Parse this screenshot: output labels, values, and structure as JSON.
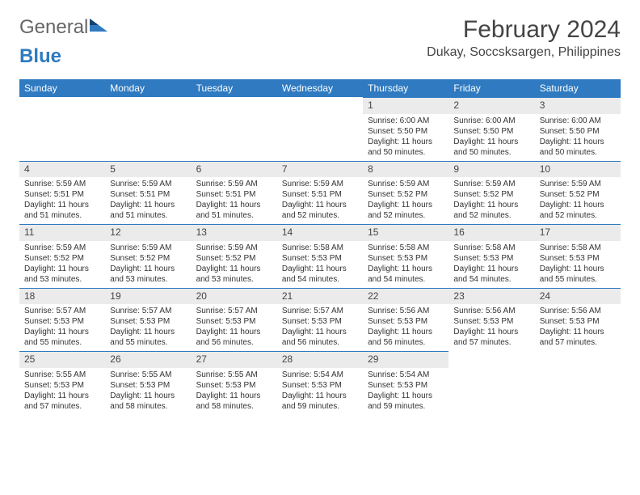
{
  "logo": {
    "text1": "General",
    "text2": "Blue"
  },
  "title": {
    "month": "February 2024",
    "location": "Dukay, Soccsksargen, Philippines"
  },
  "colors": {
    "header_bg": "#2f7ac0",
    "header_text": "#ffffff",
    "daynum_bg": "#ebebeb",
    "row_border": "#2f7ac0",
    "page_bg": "#ffffff",
    "body_text": "#333333"
  },
  "weekdays": [
    "Sunday",
    "Monday",
    "Tuesday",
    "Wednesday",
    "Thursday",
    "Friday",
    "Saturday"
  ],
  "first_weekday_index": 4,
  "days": [
    {
      "n": 1,
      "sunrise": "6:00 AM",
      "sunset": "5:50 PM",
      "daylight": "11 hours and 50 minutes."
    },
    {
      "n": 2,
      "sunrise": "6:00 AM",
      "sunset": "5:50 PM",
      "daylight": "11 hours and 50 minutes."
    },
    {
      "n": 3,
      "sunrise": "6:00 AM",
      "sunset": "5:50 PM",
      "daylight": "11 hours and 50 minutes."
    },
    {
      "n": 4,
      "sunrise": "5:59 AM",
      "sunset": "5:51 PM",
      "daylight": "11 hours and 51 minutes."
    },
    {
      "n": 5,
      "sunrise": "5:59 AM",
      "sunset": "5:51 PM",
      "daylight": "11 hours and 51 minutes."
    },
    {
      "n": 6,
      "sunrise": "5:59 AM",
      "sunset": "5:51 PM",
      "daylight": "11 hours and 51 minutes."
    },
    {
      "n": 7,
      "sunrise": "5:59 AM",
      "sunset": "5:51 PM",
      "daylight": "11 hours and 52 minutes."
    },
    {
      "n": 8,
      "sunrise": "5:59 AM",
      "sunset": "5:52 PM",
      "daylight": "11 hours and 52 minutes."
    },
    {
      "n": 9,
      "sunrise": "5:59 AM",
      "sunset": "5:52 PM",
      "daylight": "11 hours and 52 minutes."
    },
    {
      "n": 10,
      "sunrise": "5:59 AM",
      "sunset": "5:52 PM",
      "daylight": "11 hours and 52 minutes."
    },
    {
      "n": 11,
      "sunrise": "5:59 AM",
      "sunset": "5:52 PM",
      "daylight": "11 hours and 53 minutes."
    },
    {
      "n": 12,
      "sunrise": "5:59 AM",
      "sunset": "5:52 PM",
      "daylight": "11 hours and 53 minutes."
    },
    {
      "n": 13,
      "sunrise": "5:59 AM",
      "sunset": "5:52 PM",
      "daylight": "11 hours and 53 minutes."
    },
    {
      "n": 14,
      "sunrise": "5:58 AM",
      "sunset": "5:53 PM",
      "daylight": "11 hours and 54 minutes."
    },
    {
      "n": 15,
      "sunrise": "5:58 AM",
      "sunset": "5:53 PM",
      "daylight": "11 hours and 54 minutes."
    },
    {
      "n": 16,
      "sunrise": "5:58 AM",
      "sunset": "5:53 PM",
      "daylight": "11 hours and 54 minutes."
    },
    {
      "n": 17,
      "sunrise": "5:58 AM",
      "sunset": "5:53 PM",
      "daylight": "11 hours and 55 minutes."
    },
    {
      "n": 18,
      "sunrise": "5:57 AM",
      "sunset": "5:53 PM",
      "daylight": "11 hours and 55 minutes."
    },
    {
      "n": 19,
      "sunrise": "5:57 AM",
      "sunset": "5:53 PM",
      "daylight": "11 hours and 55 minutes."
    },
    {
      "n": 20,
      "sunrise": "5:57 AM",
      "sunset": "5:53 PM",
      "daylight": "11 hours and 56 minutes."
    },
    {
      "n": 21,
      "sunrise": "5:57 AM",
      "sunset": "5:53 PM",
      "daylight": "11 hours and 56 minutes."
    },
    {
      "n": 22,
      "sunrise": "5:56 AM",
      "sunset": "5:53 PM",
      "daylight": "11 hours and 56 minutes."
    },
    {
      "n": 23,
      "sunrise": "5:56 AM",
      "sunset": "5:53 PM",
      "daylight": "11 hours and 57 minutes."
    },
    {
      "n": 24,
      "sunrise": "5:56 AM",
      "sunset": "5:53 PM",
      "daylight": "11 hours and 57 minutes."
    },
    {
      "n": 25,
      "sunrise": "5:55 AM",
      "sunset": "5:53 PM",
      "daylight": "11 hours and 57 minutes."
    },
    {
      "n": 26,
      "sunrise": "5:55 AM",
      "sunset": "5:53 PM",
      "daylight": "11 hours and 58 minutes."
    },
    {
      "n": 27,
      "sunrise": "5:55 AM",
      "sunset": "5:53 PM",
      "daylight": "11 hours and 58 minutes."
    },
    {
      "n": 28,
      "sunrise": "5:54 AM",
      "sunset": "5:53 PM",
      "daylight": "11 hours and 59 minutes."
    },
    {
      "n": 29,
      "sunrise": "5:54 AM",
      "sunset": "5:53 PM",
      "daylight": "11 hours and 59 minutes."
    }
  ],
  "labels": {
    "sunrise": "Sunrise:",
    "sunset": "Sunset:",
    "daylight": "Daylight:"
  }
}
